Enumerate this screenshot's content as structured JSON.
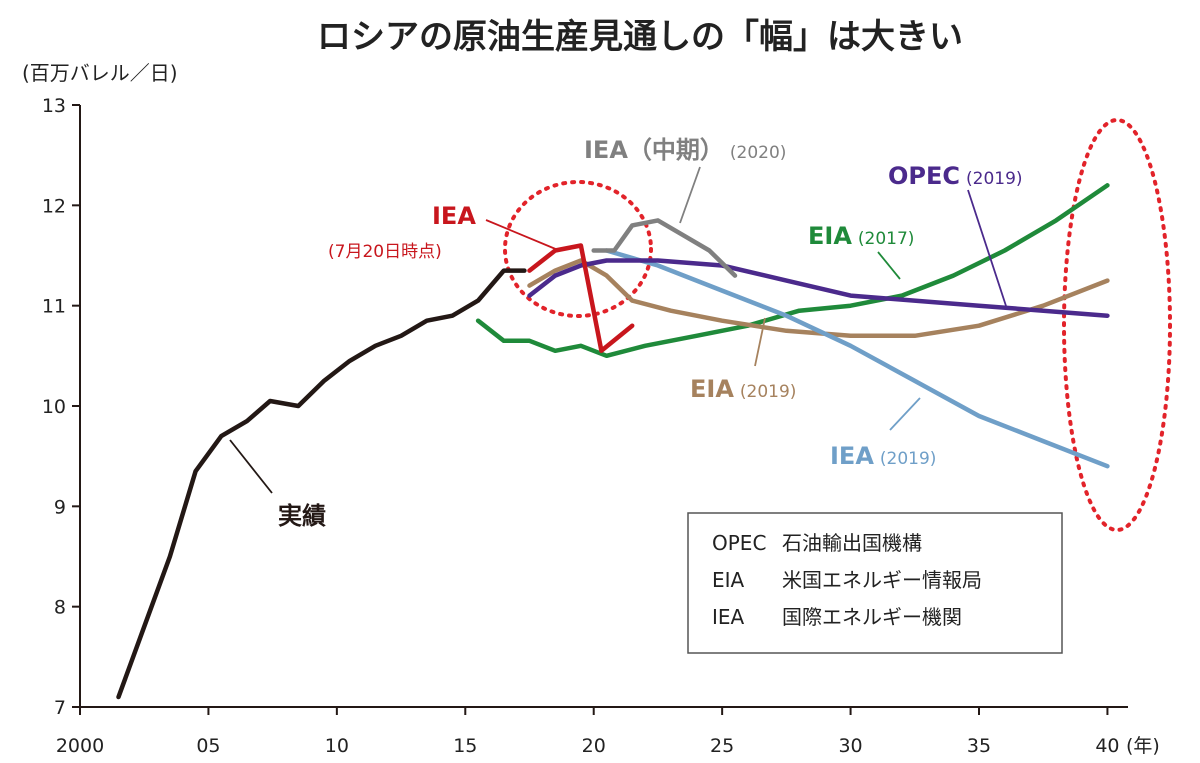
{
  "chart_data": {
    "type": "line",
    "title": "ロシアの原油生産見通しの「幅」は大きい",
    "ylabel": "(百万バレル／日)",
    "xunit": "(年)",
    "xlim": [
      2000,
      2041
    ],
    "ylim": [
      7,
      13
    ],
    "xticks": [
      {
        "value": 2000,
        "label": "2000"
      },
      {
        "value": 2005,
        "label": "05"
      },
      {
        "value": 2010,
        "label": "10"
      },
      {
        "value": 2015,
        "label": "15"
      },
      {
        "value": 2020,
        "label": "20"
      },
      {
        "value": 2025,
        "label": "25"
      },
      {
        "value": 2030,
        "label": "30"
      },
      {
        "value": 2035,
        "label": "35"
      },
      {
        "value": 2040,
        "label": "40"
      }
    ],
    "yticks": [
      {
        "value": 7,
        "label": "7"
      },
      {
        "value": 8,
        "label": "8"
      },
      {
        "value": 9,
        "label": "9"
      },
      {
        "value": 10,
        "label": "10"
      },
      {
        "value": 11,
        "label": "11"
      },
      {
        "value": 12,
        "label": "12"
      },
      {
        "value": 13,
        "label": "13"
      }
    ],
    "grid": false,
    "series": [
      {
        "name": "実績",
        "color": "#231815",
        "points": [
          [
            2001.5,
            7.1
          ],
          [
            2002.5,
            7.8
          ],
          [
            2003.5,
            8.5
          ],
          [
            2004.5,
            9.35
          ],
          [
            2005.5,
            9.7
          ],
          [
            2006.5,
            9.85
          ],
          [
            2007.4,
            10.05
          ],
          [
            2008.5,
            10.0
          ],
          [
            2009.5,
            10.25
          ],
          [
            2010.5,
            10.45
          ],
          [
            2011.5,
            10.6
          ],
          [
            2012.5,
            10.7
          ],
          [
            2013.5,
            10.85
          ],
          [
            2014.5,
            10.9
          ],
          [
            2015.5,
            11.05
          ],
          [
            2016.5,
            11.35
          ],
          [
            2017.3,
            11.35
          ]
        ],
        "label": {
          "bold": "実績",
          "small": ""
        },
        "label_color": "#231815"
      },
      {
        "name": "IEA",
        "color": "#c8161d",
        "points": [
          [
            2017.5,
            11.35
          ],
          [
            2018.5,
            11.55
          ],
          [
            2019.5,
            11.6
          ],
          [
            2020.3,
            10.55
          ],
          [
            2021.5,
            10.8
          ]
        ],
        "label": {
          "bold": "IEA",
          "small": "(7月20日時点)"
        },
        "label_color": "#c8161d"
      },
      {
        "name": "IEA（中期）",
        "color": "#808080",
        "points": [
          [
            2020,
            11.55
          ],
          [
            2020.8,
            11.55
          ],
          [
            2021.5,
            11.8
          ],
          [
            2022.5,
            11.85
          ],
          [
            2023.5,
            11.7
          ],
          [
            2024.5,
            11.55
          ],
          [
            2025.5,
            11.3
          ]
        ],
        "label": {
          "bold": "IEA（中期）",
          "small": "(2020)"
        },
        "label_color": "#808080"
      },
      {
        "name": "OPEC",
        "color": "#4b2a8c",
        "points": [
          [
            2017.5,
            11.1
          ],
          [
            2018.5,
            11.3
          ],
          [
            2019.5,
            11.4
          ],
          [
            2020.5,
            11.45
          ],
          [
            2022.5,
            11.45
          ],
          [
            2025,
            11.4
          ],
          [
            2027.5,
            11.25
          ],
          [
            2030,
            11.1
          ],
          [
            2035,
            11.0
          ],
          [
            2040,
            10.9
          ]
        ],
        "label": {
          "bold": "OPEC",
          "small": "(2019)"
        },
        "label_color": "#4b2a8c"
      },
      {
        "name": "EIA (2017)",
        "color": "#1f8a3a",
        "points": [
          [
            2015.5,
            10.85
          ],
          [
            2016.5,
            10.65
          ],
          [
            2017.5,
            10.65
          ],
          [
            2018.5,
            10.55
          ],
          [
            2019.5,
            10.6
          ],
          [
            2020.5,
            10.5
          ],
          [
            2022,
            10.6
          ],
          [
            2024,
            10.7
          ],
          [
            2026,
            10.8
          ],
          [
            2028,
            10.95
          ],
          [
            2030,
            11.0
          ],
          [
            2032,
            11.1
          ],
          [
            2034,
            11.3
          ],
          [
            2036,
            11.55
          ],
          [
            2038,
            11.85
          ],
          [
            2040,
            12.2
          ]
        ],
        "label": {
          "bold": "EIA",
          "small": "(2017)"
        },
        "label_color": "#1f8a3a"
      },
      {
        "name": "EIA (2019)",
        "color": "#a6825e",
        "points": [
          [
            2017.5,
            11.2
          ],
          [
            2018.5,
            11.35
          ],
          [
            2019.5,
            11.45
          ],
          [
            2020.5,
            11.3
          ],
          [
            2021.5,
            11.05
          ],
          [
            2023,
            10.95
          ],
          [
            2025,
            10.85
          ],
          [
            2027.5,
            10.75
          ],
          [
            2030,
            10.7
          ],
          [
            2032.5,
            10.7
          ],
          [
            2035,
            10.8
          ],
          [
            2037.5,
            11.0
          ],
          [
            2040,
            11.25
          ]
        ],
        "label": {
          "bold": "EIA",
          "small": "(2019)"
        },
        "label_color": "#a6825e"
      },
      {
        "name": "IEA (2019)",
        "color": "#6f9fc8",
        "points": [
          [
            2020.5,
            11.55
          ],
          [
            2022.5,
            11.4
          ],
          [
            2025,
            11.15
          ],
          [
            2027.5,
            10.9
          ],
          [
            2030,
            10.6
          ],
          [
            2032.5,
            10.25
          ],
          [
            2035,
            9.9
          ],
          [
            2037.5,
            9.65
          ],
          [
            2040,
            9.4
          ]
        ],
        "label": {
          "bold": "IEA",
          "small": "(2019)"
        },
        "label_color": "#6f9fc8"
      }
    ],
    "legend": [
      {
        "abbr": "OPEC",
        "desc": "石油輸出国機構"
      },
      {
        "abbr": "EIA",
        "desc": "米国エネルギー情報局"
      },
      {
        "abbr": "IEA",
        "desc": "国際エネルギー機関"
      }
    ],
    "highlight_color": "#e2232a"
  }
}
